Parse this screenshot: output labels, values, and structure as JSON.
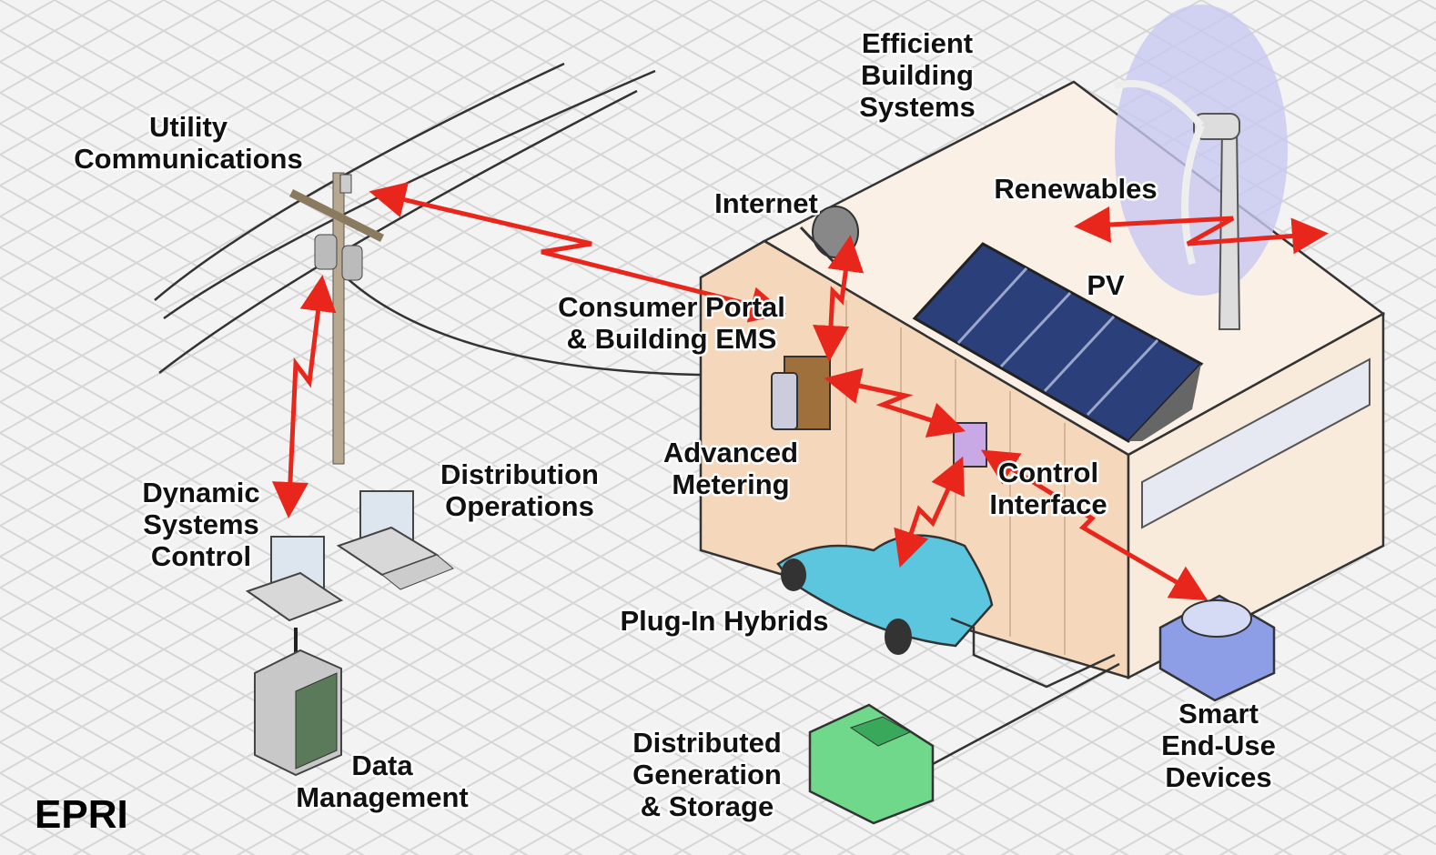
{
  "labels": [
    {
      "lines": [
        "Utility",
        "Communications"
      ]
    },
    {
      "lines": [
        "Efficient",
        "Building",
        "Systems"
      ]
    },
    {
      "lines": [
        "Renewables"
      ]
    },
    {
      "lines": [
        "Internet"
      ]
    },
    {
      "lines": [
        "PV"
      ]
    },
    {
      "lines": [
        "Consumer Portal",
        "& Building EMS"
      ]
    },
    {
      "lines": [
        "Advanced",
        "Metering"
      ]
    },
    {
      "lines": [
        "Control",
        "Interface"
      ]
    },
    {
      "lines": [
        "Dynamic",
        "Systems",
        "Control"
      ]
    },
    {
      "lines": [
        "Distribution",
        "Operations"
      ]
    },
    {
      "lines": [
        "Plug-In Hybrids"
      ]
    },
    {
      "lines": [
        "Smart",
        "End-Use",
        "Devices"
      ]
    },
    {
      "lines": [
        "Data",
        "Management"
      ]
    },
    {
      "lines": [
        "Distributed",
        "Generation",
        "& Storage"
      ]
    }
  ],
  "logo": "EPRI"
}
